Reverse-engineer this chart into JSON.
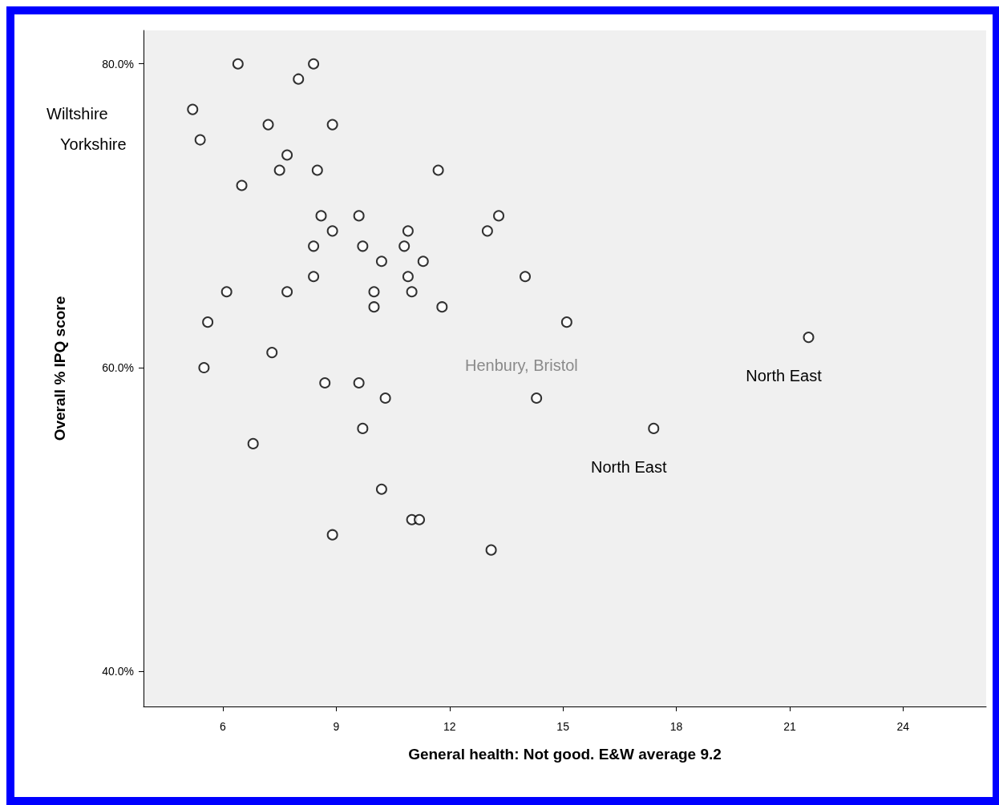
{
  "chart_data": {
    "type": "scatter",
    "xlabel": "General health: Not good. E&W average 9.2",
    "ylabel": "Overall % IPQ score",
    "x": [
      6.4,
      8.4,
      8.0,
      5.2,
      7.2,
      8.9,
      5.4,
      7.7,
      7.5,
      8.5,
      11.7,
      6.5,
      8.6,
      9.6,
      13.3,
      8.9,
      10.9,
      13.0,
      8.4,
      9.7,
      10.8,
      10.2,
      11.3,
      8.4,
      10.9,
      14.0,
      6.1,
      7.7,
      10.0,
      11.0,
      10.0,
      11.8,
      5.6,
      15.1,
      21.5,
      7.3,
      5.5,
      8.7,
      9.6,
      10.3,
      14.3,
      9.7,
      17.4,
      6.8,
      10.2,
      11.0,
      11.2,
      8.9,
      13.1
    ],
    "values": [
      80,
      80,
      79,
      77,
      76,
      76,
      75,
      74,
      73,
      73,
      73,
      72,
      70,
      70,
      70,
      69,
      69,
      69,
      68,
      68,
      68,
      67,
      67,
      66,
      66,
      66,
      65,
      65,
      65,
      65,
      64,
      64,
      63,
      63,
      62,
      61,
      60,
      59,
      59,
      58,
      58,
      56,
      56,
      55,
      52,
      50,
      50,
      49,
      48
    ],
    "color": "#000000",
    "marker": "circle",
    "grid": false,
    "xlim": [
      3.9,
      26.2
    ],
    "xticks": [
      6,
      9,
      12,
      15,
      18,
      21,
      24
    ],
    "ylim": [
      37.7,
      82.2
    ],
    "yticks": [
      {
        "value": 40,
        "label": "40.0%"
      },
      {
        "value": 60,
        "label": "60.0%"
      },
      {
        "value": 80,
        "label": "80.0%"
      }
    ],
    "annotations": [
      "Wiltshire",
      "Yorkshire",
      {
        "text": "North East",
        "x": 21.5,
        "y": 62
      },
      {
        "text": "North East",
        "x": 17.4,
        "y": 56
      },
      "Henbury, Bristol"
    ]
  }
}
